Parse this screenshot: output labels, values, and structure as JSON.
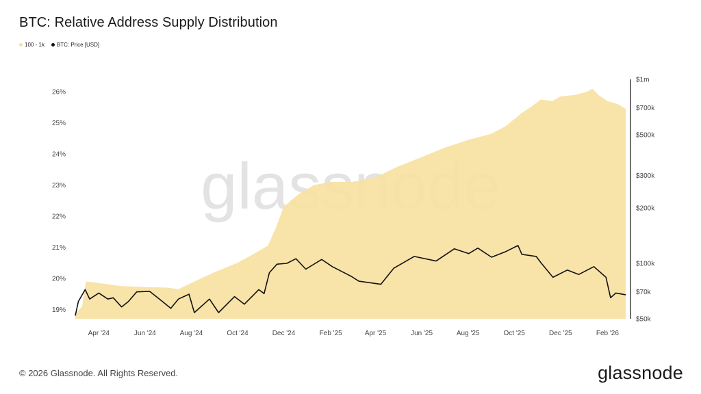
{
  "title": "BTC: Relative Address Supply Distribution",
  "legend": [
    {
      "label": "100 - 1k",
      "color": "#f7e0a0"
    },
    {
      "label": "BTC: Price [USD]",
      "color": "#111111"
    }
  ],
  "watermark": "glassnode",
  "footer": {
    "copyright": "© 2026 Glassnode. All Rights Reserved.",
    "brand": "glassnode"
  },
  "chart_data": {
    "type": "area",
    "x_tick_labels": [
      "Apr '24",
      "Jun '24",
      "Aug '24",
      "Oct '24",
      "Dec '24",
      "Feb '25",
      "Apr '25",
      "Jun '25",
      "Aug '25",
      "Oct '25",
      "Dec '25",
      "Feb '26"
    ],
    "left_axis": {
      "tick_labels": [
        "19%",
        "20%",
        "21%",
        "22%",
        "23%",
        "24%",
        "25%",
        "26%"
      ],
      "ticks": [
        19,
        20,
        21,
        22,
        23,
        24,
        25,
        26
      ],
      "range": [
        18.7,
        26.4
      ]
    },
    "right_axis": {
      "scale": "log",
      "tick_labels": [
        "$50k",
        "$70k",
        "$100k",
        "$200k",
        "$300k",
        "$500k",
        "$700k",
        "$1m"
      ],
      "ticks": [
        50000,
        70000,
        100000,
        200000,
        300000,
        500000,
        700000,
        1000000
      ],
      "range": [
        50000,
        1000000
      ]
    },
    "series": [
      {
        "name": "100 - 1k",
        "axis": "left",
        "color": "#f7e0a0",
        "style": "area",
        "x": [
          "2024-03-01",
          "2024-03-10",
          "2024-03-15",
          "2024-04-01",
          "2024-05-01",
          "2024-06-01",
          "2024-07-01",
          "2024-07-15",
          "2024-08-01",
          "2024-09-01",
          "2024-10-01",
          "2024-10-20",
          "2024-11-10",
          "2024-11-20",
          "2024-12-01",
          "2024-12-20",
          "2025-01-10",
          "2025-02-01",
          "2025-03-01",
          "2025-04-01",
          "2025-05-01",
          "2025-06-01",
          "2025-07-01",
          "2025-08-01",
          "2025-09-01",
          "2025-09-20",
          "2025-10-10",
          "2025-10-25",
          "2025-11-05",
          "2025-11-20",
          "2025-12-01",
          "2025-12-20",
          "2026-01-05",
          "2026-01-12",
          "2026-01-20",
          "2026-02-01",
          "2026-02-15",
          "2026-02-25"
        ],
        "values": [
          18.85,
          19.1,
          19.9,
          19.85,
          19.75,
          19.72,
          19.7,
          19.65,
          19.85,
          20.2,
          20.5,
          20.75,
          21.05,
          21.6,
          22.3,
          22.7,
          23.0,
          23.1,
          23.1,
          23.25,
          23.6,
          23.9,
          24.2,
          24.45,
          24.65,
          24.9,
          25.3,
          25.55,
          25.75,
          25.7,
          25.85,
          25.9,
          26.0,
          26.1,
          25.9,
          25.7,
          25.6,
          25.45
        ]
      },
      {
        "name": "BTC: Price [USD]",
        "axis": "right",
        "color": "#111111",
        "style": "line",
        "x": [
          "2024-03-01",
          "2024-03-05",
          "2024-03-14",
          "2024-03-20",
          "2024-04-01",
          "2024-04-13",
          "2024-04-20",
          "2024-05-01",
          "2024-05-10",
          "2024-05-21",
          "2024-06-07",
          "2024-06-20",
          "2024-07-05",
          "2024-07-15",
          "2024-07-29",
          "2024-08-05",
          "2024-08-25",
          "2024-09-06",
          "2024-09-27",
          "2024-10-10",
          "2024-10-29",
          "2024-11-05",
          "2024-11-12",
          "2024-11-22",
          "2024-12-05",
          "2024-12-17",
          "2024-12-30",
          "2025-01-20",
          "2025-02-03",
          "2025-02-28",
          "2025-03-10",
          "2025-04-08",
          "2025-04-25",
          "2025-05-22",
          "2025-06-20",
          "2025-07-14",
          "2025-08-02",
          "2025-08-14",
          "2025-09-01",
          "2025-09-20",
          "2025-10-06",
          "2025-10-11",
          "2025-10-30",
          "2025-11-05",
          "2025-11-21",
          "2025-12-10",
          "2025-12-25",
          "2026-01-14",
          "2026-01-30",
          "2026-02-05",
          "2026-02-12",
          "2026-02-25"
        ],
        "values": [
          52000,
          62000,
          72000,
          64000,
          69000,
          64000,
          65000,
          58000,
          62000,
          70000,
          70500,
          64000,
          57000,
          64000,
          68000,
          54000,
          64000,
          54000,
          66000,
          60000,
          72000,
          68500,
          89000,
          99000,
          100000,
          106000,
          93000,
          105000,
          96000,
          85000,
          80000,
          77000,
          94000,
          109000,
          103000,
          120000,
          113000,
          121000,
          108000,
          116000,
          125000,
          112000,
          109000,
          101000,
          84000,
          92000,
          87000,
          96000,
          84000,
          65000,
          69000,
          67500
        ]
      }
    ]
  }
}
